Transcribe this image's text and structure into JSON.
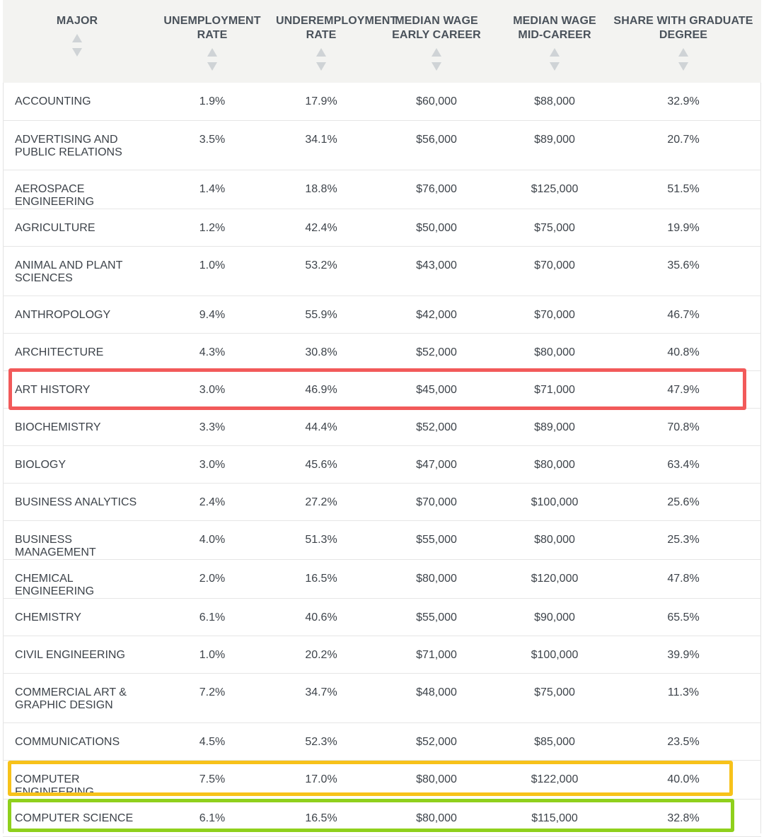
{
  "columns": [
    {
      "line1": "MAJOR",
      "line2": ""
    },
    {
      "line1": "UNEMPLOYMENT",
      "line2": "RATE"
    },
    {
      "line1": "UNDEREMPLOYMENT",
      "line2": "RATE"
    },
    {
      "line1": "MEDIAN WAGE",
      "line2": "EARLY CAREER"
    },
    {
      "line1": "MEDIAN WAGE",
      "line2": "MID-CAREER"
    },
    {
      "line1": "SHARE WITH GRADUATE",
      "line2": "DEGREE"
    }
  ],
  "rows": [
    {
      "major": "ACCOUNTING",
      "unemployment": "1.9%",
      "underemployment": "17.9%",
      "wage_early": "$60,000",
      "wage_mid": "$88,000",
      "grad_share": "32.9%"
    },
    {
      "major": "ADVERTISING AND PUBLIC RELATIONS",
      "unemployment": "3.5%",
      "underemployment": "34.1%",
      "wage_early": "$56,000",
      "wage_mid": "$89,000",
      "grad_share": "20.7%"
    },
    {
      "major": "AEROSPACE ENGINEERING",
      "unemployment": "1.4%",
      "underemployment": "18.8%",
      "wage_early": "$76,000",
      "wage_mid": "$125,000",
      "grad_share": "51.5%"
    },
    {
      "major": "AGRICULTURE",
      "unemployment": "1.2%",
      "underemployment": "42.4%",
      "wage_early": "$50,000",
      "wage_mid": "$75,000",
      "grad_share": "19.9%"
    },
    {
      "major": "ANIMAL AND PLANT SCIENCES",
      "unemployment": "1.0%",
      "underemployment": "53.2%",
      "wage_early": "$43,000",
      "wage_mid": "$70,000",
      "grad_share": "35.6%"
    },
    {
      "major": "ANTHROPOLOGY",
      "unemployment": "9.4%",
      "underemployment": "55.9%",
      "wage_early": "$42,000",
      "wage_mid": "$70,000",
      "grad_share": "46.7%"
    },
    {
      "major": "ARCHITECTURE",
      "unemployment": "4.3%",
      "underemployment": "30.8%",
      "wage_early": "$52,000",
      "wage_mid": "$80,000",
      "grad_share": "40.8%"
    },
    {
      "major": "ART HISTORY",
      "unemployment": "3.0%",
      "underemployment": "46.9%",
      "wage_early": "$45,000",
      "wage_mid": "$71,000",
      "grad_share": "47.9%"
    },
    {
      "major": "BIOCHEMISTRY",
      "unemployment": "3.3%",
      "underemployment": "44.4%",
      "wage_early": "$52,000",
      "wage_mid": "$89,000",
      "grad_share": "70.8%"
    },
    {
      "major": "BIOLOGY",
      "unemployment": "3.0%",
      "underemployment": "45.6%",
      "wage_early": "$47,000",
      "wage_mid": "$80,000",
      "grad_share": "63.4%"
    },
    {
      "major": "BUSINESS ANALYTICS",
      "unemployment": "2.4%",
      "underemployment": "27.2%",
      "wage_early": "$70,000",
      "wage_mid": "$100,000",
      "grad_share": "25.6%"
    },
    {
      "major": "BUSINESS MANAGEMENT",
      "unemployment": "4.0%",
      "underemployment": "51.3%",
      "wage_early": "$55,000",
      "wage_mid": "$80,000",
      "grad_share": "25.3%"
    },
    {
      "major": "CHEMICAL ENGINEERING",
      "unemployment": "2.0%",
      "underemployment": "16.5%",
      "wage_early": "$80,000",
      "wage_mid": "$120,000",
      "grad_share": "47.8%"
    },
    {
      "major": "CHEMISTRY",
      "unemployment": "6.1%",
      "underemployment": "40.6%",
      "wage_early": "$55,000",
      "wage_mid": "$90,000",
      "grad_share": "65.5%"
    },
    {
      "major": "CIVIL ENGINEERING",
      "unemployment": "1.0%",
      "underemployment": "20.2%",
      "wage_early": "$71,000",
      "wage_mid": "$100,000",
      "grad_share": "39.9%"
    },
    {
      "major": "COMMERCIAL ART & GRAPHIC DESIGN",
      "unemployment": "7.2%",
      "underemployment": "34.7%",
      "wage_early": "$48,000",
      "wage_mid": "$75,000",
      "grad_share": "11.3%"
    },
    {
      "major": "COMMUNICATIONS",
      "unemployment": "4.5%",
      "underemployment": "52.3%",
      "wage_early": "$52,000",
      "wage_mid": "$85,000",
      "grad_share": "23.5%"
    },
    {
      "major": "COMPUTER ENGINEERING",
      "unemployment": "7.5%",
      "underemployment": "17.0%",
      "wage_early": "$80,000",
      "wage_mid": "$122,000",
      "grad_share": "40.0%"
    },
    {
      "major": "COMPUTER SCIENCE",
      "unemployment": "6.1%",
      "underemployment": "16.5%",
      "wage_early": "$80,000",
      "wage_mid": "$115,000",
      "grad_share": "32.8%"
    }
  ],
  "highlight_colors": {
    "red": "#f25a5a",
    "yellow": "#f7c21a",
    "green": "#8fd01c"
  },
  "header_background": "#f3f3f1",
  "icons": {
    "sort": "sort-up-down-icon"
  }
}
